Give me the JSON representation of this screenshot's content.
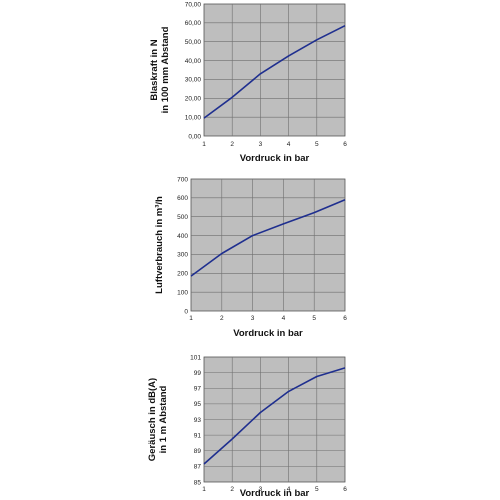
{
  "chart_data": [
    {
      "type": "line",
      "x": [
        1,
        2,
        3,
        4,
        5,
        6
      ],
      "values": [
        9.5,
        20.5,
        33,
        42.5,
        51,
        58.5
      ],
      "ylabel_lines": [
        "Blaskraft in N",
        "in 100 mm Abstand"
      ],
      "xlabel": "Vordruck in bar",
      "xlim": [
        1,
        6
      ],
      "ylim": [
        0,
        70
      ],
      "xticks": [
        "1",
        "2",
        "3",
        "4",
        "5",
        "6"
      ],
      "yticks": [
        "0,00",
        "10,00",
        "20,00",
        "30,00",
        "40,00",
        "50,00",
        "60,00",
        "70,00"
      ],
      "grid": true,
      "colors": {
        "line": "#1f2f8f",
        "plot_bg": "#bebebe",
        "grid": "#6f6f6f"
      }
    },
    {
      "type": "line",
      "x": [
        1,
        2,
        3,
        4,
        5,
        6
      ],
      "values": [
        185,
        305,
        400,
        462,
        522,
        590
      ],
      "ylabel_lines": [
        "Luftverbrauch in m³/h"
      ],
      "xlabel": "Vordruck in bar",
      "xlim": [
        1,
        6
      ],
      "ylim": [
        0,
        700
      ],
      "xticks": [
        "1",
        "2",
        "3",
        "4",
        "5",
        "6"
      ],
      "yticks": [
        "0",
        "100",
        "200",
        "300",
        "400",
        "500",
        "600",
        "700"
      ],
      "grid": true,
      "colors": {
        "line": "#1f2f8f",
        "plot_bg": "#bebebe",
        "grid": "#6f6f6f"
      }
    },
    {
      "type": "line",
      "x": [
        1,
        2,
        3,
        4,
        5,
        6
      ],
      "values": [
        87.3,
        90.5,
        93.9,
        96.6,
        98.5,
        99.6
      ],
      "ylabel_lines": [
        "Geräusch in dB(A)",
        "in 1 m Abstand"
      ],
      "xlabel": "Vordruck in bar",
      "xlim": [
        1,
        6
      ],
      "ylim": [
        85,
        101
      ],
      "xticks": [
        "1",
        "2",
        "3",
        "4",
        "5",
        "6"
      ],
      "yticks": [
        "85",
        "87",
        "89",
        "91",
        "93",
        "95",
        "97",
        "99",
        "101"
      ],
      "grid": true,
      "colors": {
        "line": "#1f2f8f",
        "plot_bg": "#bebebe",
        "grid": "#6f6f6f"
      }
    }
  ]
}
